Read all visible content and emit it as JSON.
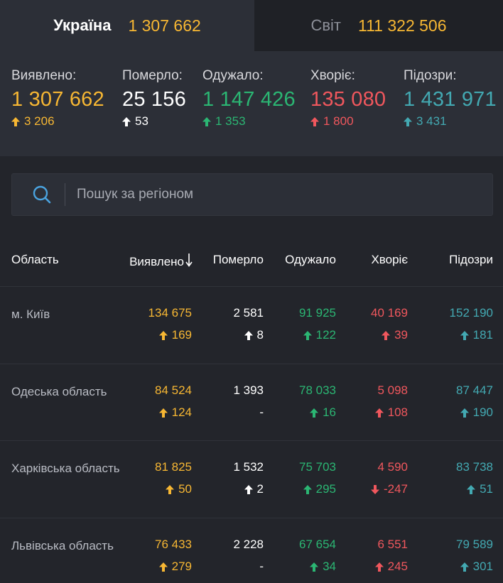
{
  "colors": {
    "yellow": "#f7b733",
    "white": "#ffffff",
    "green": "#2bb673",
    "red": "#f0575d",
    "teal": "#43a9b2"
  },
  "tabs": {
    "ukraine": {
      "label": "Україна",
      "value": "1 307 662"
    },
    "world": {
      "label": "Світ",
      "value": "111 322 506"
    }
  },
  "summary": [
    {
      "label": "Виявлено:",
      "value": "1 307 662",
      "delta": "3 206",
      "direction": "up",
      "color": "yellow"
    },
    {
      "label": "Померло:",
      "value": "25 156",
      "delta": "53",
      "direction": "up",
      "color": "white"
    },
    {
      "label": "Одужало:",
      "value": "1 147 426",
      "delta": "1 353",
      "direction": "up",
      "color": "green"
    },
    {
      "label": "Хворіє:",
      "value": "135 080",
      "delta": "1 800",
      "direction": "up",
      "color": "red"
    },
    {
      "label": "Підозри:",
      "value": "1 431 971",
      "delta": "3 431",
      "direction": "up",
      "color": "teal"
    }
  ],
  "search": {
    "placeholder": "Пошук за регіоном",
    "icon": "search-icon"
  },
  "table": {
    "headers": [
      "Область",
      "Виявлено",
      "Померло",
      "Одужало",
      "Хворіє",
      "Підозри"
    ],
    "sort_icon": "arrow-down-icon",
    "rows": [
      {
        "region": "м. Київ",
        "cases": {
          "value": "134 675",
          "delta": "169",
          "direction": "up"
        },
        "deaths": {
          "value": "2 581",
          "delta": "8",
          "direction": "up"
        },
        "recovered": {
          "value": "91 925",
          "delta": "122",
          "direction": "up"
        },
        "sick": {
          "value": "40 169",
          "delta": "39",
          "direction": "up"
        },
        "suspected": {
          "value": "152 190",
          "delta": "181",
          "direction": "up"
        }
      },
      {
        "region": "Одеська область",
        "cases": {
          "value": "84 524",
          "delta": "124",
          "direction": "up"
        },
        "deaths": {
          "value": "1 393",
          "delta": "-",
          "direction": "none"
        },
        "recovered": {
          "value": "78 033",
          "delta": "16",
          "direction": "up"
        },
        "sick": {
          "value": "5 098",
          "delta": "108",
          "direction": "up"
        },
        "suspected": {
          "value": "87 447",
          "delta": "190",
          "direction": "up"
        }
      },
      {
        "region": "Харківська область",
        "cases": {
          "value": "81 825",
          "delta": "50",
          "direction": "up"
        },
        "deaths": {
          "value": "1 532",
          "delta": "2",
          "direction": "up"
        },
        "recovered": {
          "value": "75 703",
          "delta": "295",
          "direction": "up"
        },
        "sick": {
          "value": "4 590",
          "delta": "-247",
          "direction": "down"
        },
        "suspected": {
          "value": "83 738",
          "delta": "51",
          "direction": "up"
        }
      },
      {
        "region": "Львівська область",
        "cases": {
          "value": "76 433",
          "delta": "279",
          "direction": "up"
        },
        "deaths": {
          "value": "2 228",
          "delta": "-",
          "direction": "none"
        },
        "recovered": {
          "value": "67 654",
          "delta": "34",
          "direction": "up"
        },
        "sick": {
          "value": "6 551",
          "delta": "245",
          "direction": "up"
        },
        "suspected": {
          "value": "79 589",
          "delta": "301",
          "direction": "up"
        }
      }
    ]
  }
}
